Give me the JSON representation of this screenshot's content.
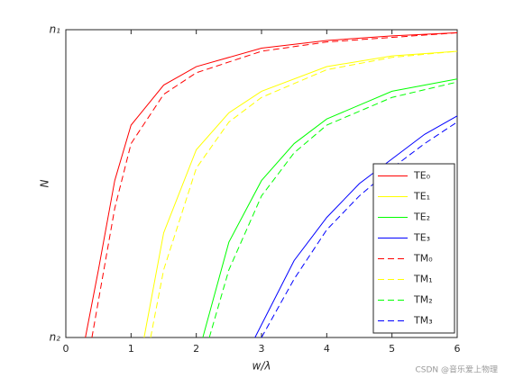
{
  "chart_data": {
    "type": "line",
    "xlabel": "w/λ",
    "ylabel": "N",
    "xlim": [
      0,
      6
    ],
    "xticks": [
      0,
      1,
      2,
      3,
      4,
      5,
      6
    ],
    "ylim": [
      0,
      1
    ],
    "yticks": [
      {
        "value": 0,
        "label": "n₂"
      },
      {
        "value": 1,
        "label": "n₁"
      }
    ],
    "legend": "southeast",
    "watermark": "CSDN @音乐爱上物理",
    "series": [
      {
        "name": "TE₀",
        "color": "#ff0000",
        "linestyle": "solid",
        "x": [
          0.3,
          0.5,
          0.75,
          1,
          1.5,
          2,
          3,
          4,
          5,
          6
        ],
        "values": [
          0,
          0.22,
          0.51,
          0.69,
          0.82,
          0.88,
          0.94,
          0.965,
          0.98,
          0.99
        ]
      },
      {
        "name": "TE₁",
        "color": "#ffff00",
        "linestyle": "solid",
        "x": [
          1.2,
          1.5,
          2,
          2.5,
          3,
          4,
          5,
          6
        ],
        "values": [
          0,
          0.34,
          0.61,
          0.73,
          0.8,
          0.88,
          0.915,
          0.93
        ]
      },
      {
        "name": "TE₂",
        "color": "#00ff00",
        "linestyle": "solid",
        "x": [
          2.1,
          2.5,
          3,
          3.5,
          4,
          5,
          6
        ],
        "values": [
          0,
          0.31,
          0.51,
          0.63,
          0.71,
          0.8,
          0.84
        ]
      },
      {
        "name": "TE₃",
        "color": "#0000ff",
        "linestyle": "solid",
        "x": [
          2.9,
          3.5,
          4,
          4.5,
          5,
          5.5,
          6
        ],
        "values": [
          0,
          0.25,
          0.39,
          0.5,
          0.58,
          0.66,
          0.72
        ]
      },
      {
        "name": "TM₀",
        "color": "#ff0000",
        "linestyle": "dashed",
        "x": [
          0.4,
          0.5,
          0.75,
          1,
          1.5,
          2,
          3,
          4,
          5,
          6
        ],
        "values": [
          0,
          0.12,
          0.42,
          0.63,
          0.79,
          0.86,
          0.93,
          0.96,
          0.975,
          0.99
        ]
      },
      {
        "name": "TM₁",
        "color": "#ffff00",
        "linestyle": "dashed",
        "x": [
          1.3,
          1.5,
          2,
          2.5,
          3,
          4,
          5,
          6
        ],
        "values": [
          0,
          0.22,
          0.55,
          0.7,
          0.78,
          0.87,
          0.91,
          0.93
        ]
      },
      {
        "name": "TM₂",
        "color": "#00ff00",
        "linestyle": "dashed",
        "x": [
          2.2,
          2.5,
          3,
          3.5,
          4,
          5,
          6
        ],
        "values": [
          0,
          0.22,
          0.46,
          0.6,
          0.69,
          0.78,
          0.83
        ]
      },
      {
        "name": "TM₃",
        "color": "#0000ff",
        "linestyle": "dashed",
        "x": [
          3.0,
          3.5,
          4,
          4.5,
          5,
          5.5,
          6
        ],
        "values": [
          0,
          0.19,
          0.35,
          0.46,
          0.55,
          0.63,
          0.7
        ]
      }
    ]
  }
}
